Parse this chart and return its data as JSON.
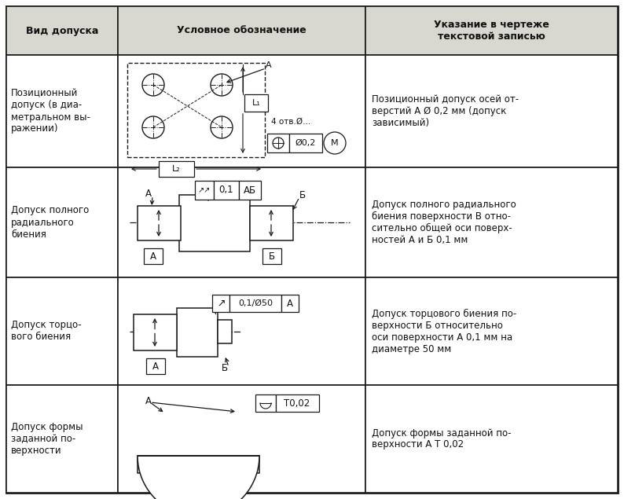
{
  "title_col1": "Вид допуска",
  "title_col2": "Условное обозначение",
  "title_col3": "Указание в чертеже\nтекстовой записью",
  "row1_col1": "Позиционный\nдопуск (в диа-\nметральном вы-\nражении)",
  "row1_col3": "Позиционный допуск осей от-\nверстий А Ø 0,2 мм (допуск\nзависимый)",
  "row2_col1": "Допуск полного\nрадиального\nбиения",
  "row2_col3": "Допуск полного радиального\nбиения поверхности В отно-\nсительно общей оси поверх-\nностей А и Б 0,1 мм",
  "row3_col1": "Допуск торцо-\nвого биения",
  "row3_col3": "Допуск торцового биения по-\nверхности Б относительно\nоси поверхности А 0,1 мм на\nдиаметре 50 мм",
  "row4_col1": "Допуск формы\nзаданной по-\nверхности",
  "row4_col3": "Допуск формы заданной по-\nверхности А Т 0,02",
  "bg_color": "#ffffff",
  "border_color": "#1a1a1a",
  "header_bg": "#d8d8d0",
  "text_color": "#111111"
}
